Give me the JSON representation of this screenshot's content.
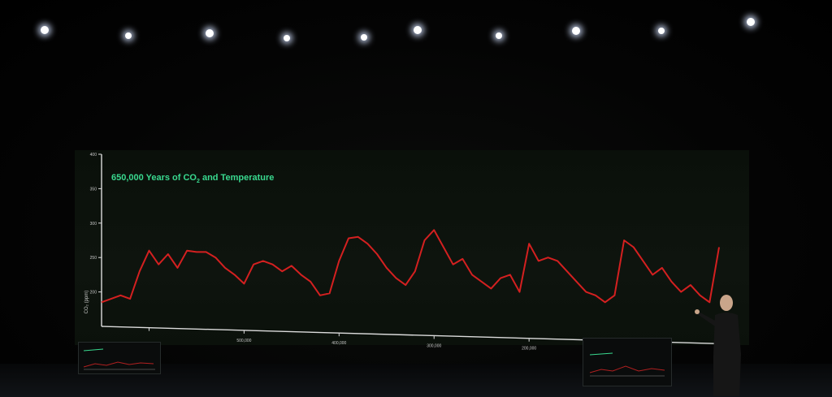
{
  "chart_data": {
    "type": "line",
    "title": "650,000 Years of CO",
    "title_subscript": "2",
    "title_suffix": " and Temperature",
    "ylabel": "CO₂ (ppm)",
    "xlabel": "",
    "y_ticks": [
      "400",
      "350",
      "300",
      "250",
      "200"
    ],
    "x_ticks": [
      "500,000",
      "400,000",
      "300,000",
      "200,000"
    ],
    "ylim": [
      150,
      400
    ],
    "xlim": [
      650000,
      0
    ],
    "x_reversed": true,
    "grid": false,
    "series": [
      {
        "color": "#d42020",
        "x": [
          650000,
          640000,
          630000,
          620000,
          610000,
          600000,
          590000,
          580000,
          570000,
          560000,
          550000,
          540000,
          530000,
          520000,
          510000,
          500000,
          490000,
          480000,
          470000,
          460000,
          450000,
          440000,
          430000,
          420000,
          410000,
          400000,
          390000,
          380000,
          370000,
          360000,
          350000,
          340000,
          330000,
          320000,
          310000,
          300000,
          290000,
          280000,
          270000,
          260000,
          250000,
          240000,
          230000,
          220000,
          210000,
          200000,
          190000,
          180000,
          170000,
          160000,
          150000,
          140000,
          130000,
          120000,
          110000,
          100000,
          90000,
          80000,
          70000,
          60000,
          50000,
          40000,
          30000,
          20000,
          10000,
          0
        ],
        "values": [
          185,
          190,
          195,
          190,
          230,
          260,
          240,
          255,
          235,
          260,
          258,
          258,
          250,
          235,
          225,
          212,
          240,
          245,
          240,
          230,
          238,
          225,
          215,
          195,
          198,
          245,
          278,
          280,
          270,
          255,
          235,
          220,
          210,
          230,
          275,
          290,
          265,
          240,
          248,
          225,
          215,
          205,
          220,
          225,
          200,
          270,
          245,
          250,
          245,
          230,
          215,
          200,
          195,
          185,
          195,
          275,
          265,
          245,
          225,
          235,
          215,
          200,
          210,
          195,
          185,
          265
        ]
      }
    ]
  },
  "colors": {
    "background": "#000000",
    "title": "#39d98f",
    "series": "#d42020",
    "axis": "#dcdcdc"
  }
}
